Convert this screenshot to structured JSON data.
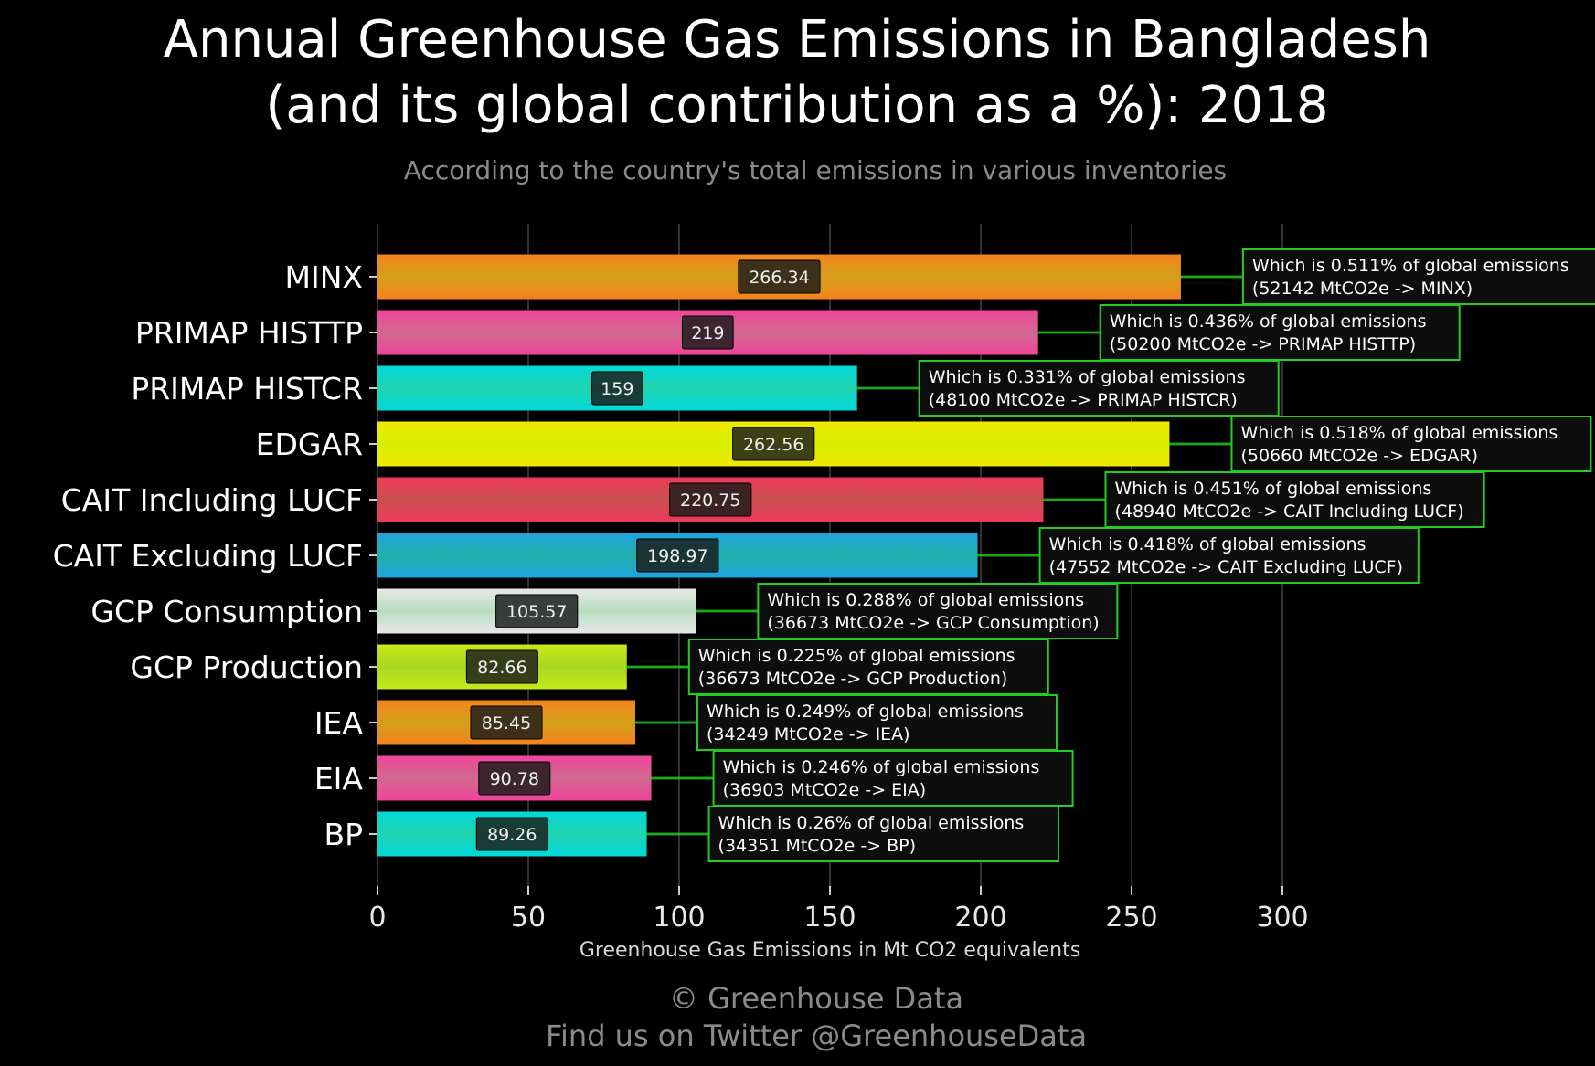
{
  "chart_data": {
    "type": "bar",
    "orientation": "horizontal",
    "title_line1": "Annual Greenhouse Gas Emissions in Bangladesh",
    "title_line2": "(and its global contribution as a %): 2018",
    "subtitle": "According to the country's total emissions in various inventories",
    "xlabel": "Greenhouse Gas Emissions in Mt CO2 equivalents",
    "ylabel": "",
    "xlim": [
      0,
      300
    ],
    "xticks": [
      "0",
      "50",
      "100",
      "150",
      "200",
      "250",
      "300"
    ],
    "grid": true,
    "categories": [
      "MINX",
      "PRIMAP HISTTP",
      "PRIMAP HISTCR",
      "EDGAR",
      "CAIT Including LUCF",
      "CAIT Excluding LUCF",
      "GCP Consumption",
      "GCP Production",
      "IEA",
      "EIA",
      "BP"
    ],
    "values": [
      266.34,
      219,
      159,
      262.56,
      220.75,
      198.97,
      105.57,
      82.66,
      85.45,
      90.78,
      89.26
    ],
    "value_labels": [
      "266.34",
      "219",
      "159",
      "262.56",
      "220.75",
      "198.97",
      "105.57",
      "82.66",
      "85.45",
      "90.78",
      "89.26"
    ],
    "annotations": [
      {
        "line1": "Which is 0.511% of global emissions",
        "line2": "(52142 MtCO2e -> MINX)"
      },
      {
        "line1": "Which is 0.436% of global emissions",
        "line2": "(50200 MtCO2e -> PRIMAP HISTTP)"
      },
      {
        "line1": "Which is 0.331% of global emissions",
        "line2": "(48100 MtCO2e -> PRIMAP HISTCR)"
      },
      {
        "line1": "Which is 0.518% of global emissions",
        "line2": "(50660 MtCO2e -> EDGAR)"
      },
      {
        "line1": "Which is 0.451% of global emissions",
        "line2": "(48940 MtCO2e -> CAIT Including LUCF)"
      },
      {
        "line1": "Which is 0.418% of global emissions",
        "line2": "(47552 MtCO2e -> CAIT Excluding LUCF)"
      },
      {
        "line1": "Which is 0.288% of global emissions",
        "line2": "(36673 MtCO2e -> GCP Consumption)"
      },
      {
        "line1": "Which is 0.225% of global emissions",
        "line2": "(36673 MtCO2e -> GCP Production)"
      },
      {
        "line1": "Which is 0.249% of global emissions",
        "line2": "(34249 MtCO2e -> IEA)"
      },
      {
        "line1": "Which is 0.246% of global emissions",
        "line2": "(36903 MtCO2e -> EIA)"
      },
      {
        "line1": "Which is 0.26% of global emissions",
        "line2": "(34351 MtCO2e -> BP)"
      }
    ],
    "bar_colors": [
      [
        "#f5821f",
        "#d4a017"
      ],
      [
        "#f0449c",
        "#d06a8e"
      ],
      [
        "#00d9d9",
        "#20d3b0"
      ],
      [
        "#f0e800",
        "#d8f000"
      ],
      [
        "#ee3a5a",
        "#c85050"
      ],
      [
        "#1fa3e0",
        "#20b0a8"
      ],
      [
        "#e8e8e8",
        "#b8dcc0"
      ],
      [
        "#c8e81a",
        "#a8d820"
      ],
      [
        "#f5821f",
        "#d4a017"
      ],
      [
        "#f0449c",
        "#d06a8e"
      ],
      [
        "#00d9d9",
        "#20d3b0"
      ]
    ],
    "label_box_color": "#1a1a1a",
    "annotation_border_color": "#22cc22",
    "connector_color": "#22cc22"
  },
  "footer": {
    "line1": "© Greenhouse Data",
    "line2": "Find us on Twitter @GreenhouseData"
  },
  "colors": {
    "background": "#000000",
    "grid": "#333333",
    "title": "#ffffff",
    "subtitle": "#8a8a8a",
    "footer": "#8a8a8a"
  }
}
